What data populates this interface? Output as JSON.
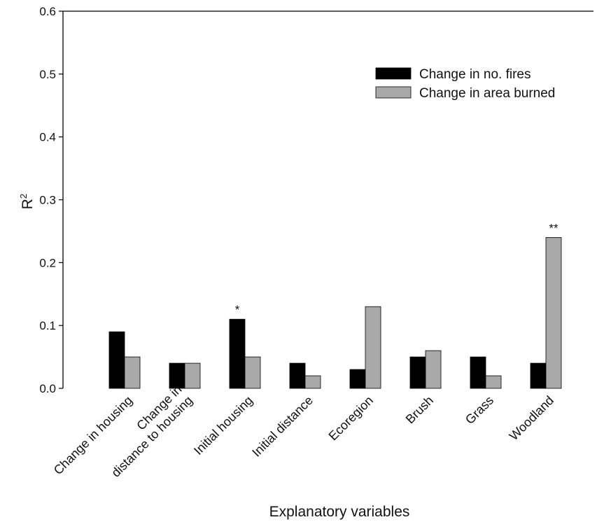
{
  "chart_data": {
    "type": "bar",
    "xlabel": "Explanatory variables",
    "ylabel": "R",
    "ylabel_superscript": "2",
    "ylim": [
      0,
      0.6
    ],
    "yticks": [
      "0.0",
      "0.1",
      "0.2",
      "0.3",
      "0.4",
      "0.5",
      "0.6"
    ],
    "grid": false,
    "legend_position": "top-right",
    "categories": [
      [
        "Change in housing"
      ],
      [
        "Change in",
        "distance to housing"
      ],
      [
        "Initial housing"
      ],
      [
        "Initial distance"
      ],
      [
        "Ecoregion"
      ],
      [
        "Brush"
      ],
      [
        "Grass"
      ],
      [
        "Woodland"
      ]
    ],
    "series": [
      {
        "name": "Change in no. fires",
        "color": "#000000",
        "values": [
          0.09,
          0.04,
          0.11,
          0.04,
          0.03,
          0.05,
          0.05,
          0.04
        ]
      },
      {
        "name": "Change in area burned",
        "color": "#a9a9a9",
        "values": [
          0.05,
          0.04,
          0.05,
          0.02,
          0.13,
          0.06,
          0.02,
          0.24
        ]
      }
    ],
    "annotations": [
      {
        "category_index": 2,
        "series_index": 0,
        "text": "*"
      },
      {
        "category_index": 7,
        "series_index": 1,
        "text": "**"
      }
    ]
  }
}
